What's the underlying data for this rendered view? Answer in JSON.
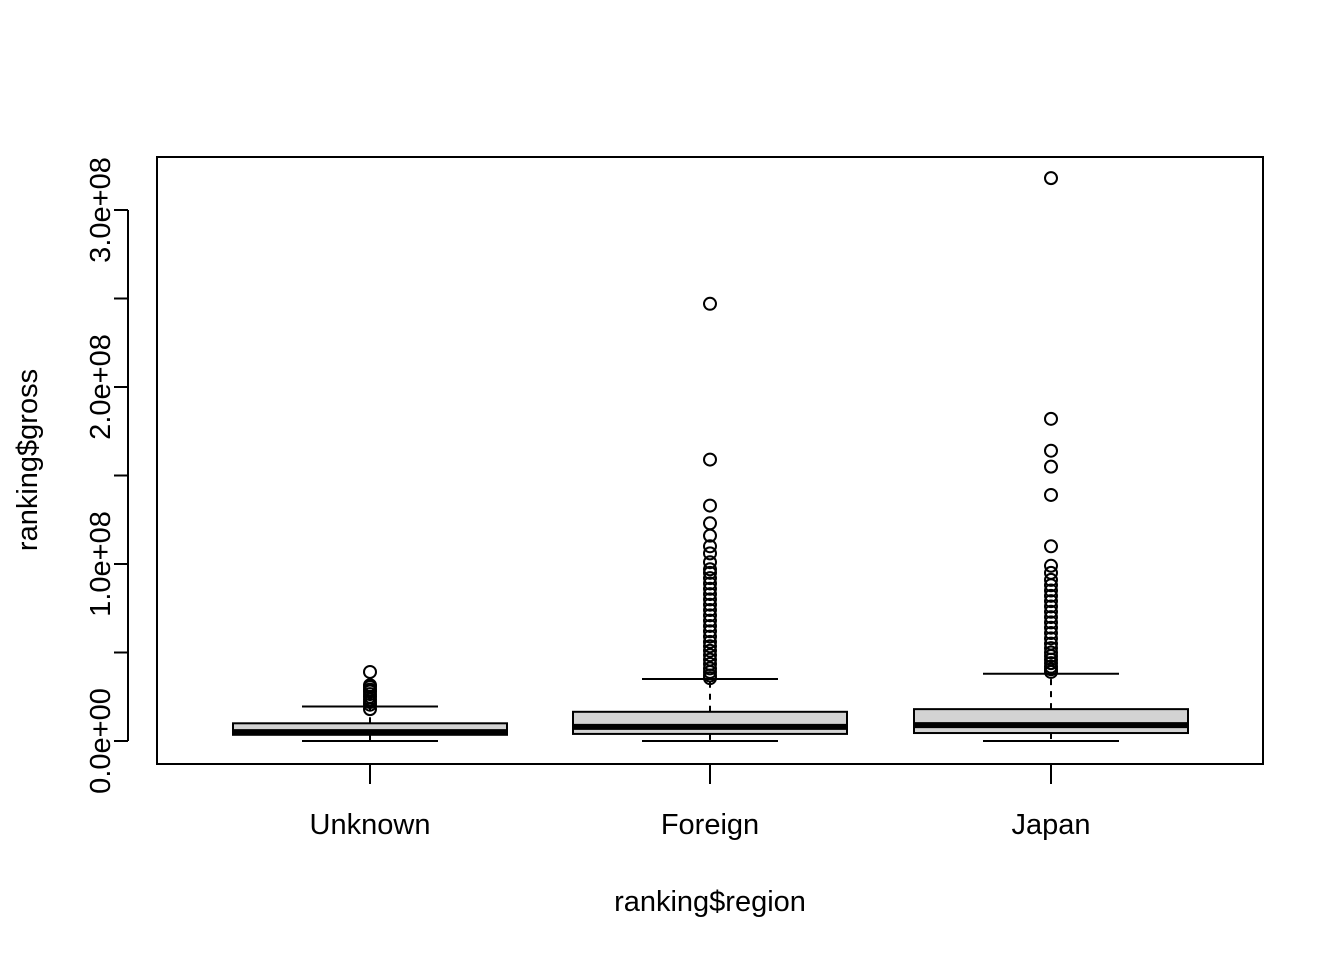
{
  "chart_data": {
    "type": "boxplot",
    "title": "",
    "xlabel": "ranking$region",
    "ylabel": "ranking$gross",
    "ylim": [
      -12000000,
      330000000
    ],
    "y_ticks": [
      0,
      100000000,
      200000000,
      300000000
    ],
    "y_minor_ticks": [
      50000000,
      150000000,
      250000000
    ],
    "y_tick_labels": [
      "0.0e+00",
      "1.0e+08",
      "2.0e+08",
      "3.0e+08"
    ],
    "categories": [
      "Unknown",
      "Foreign",
      "Japan"
    ],
    "grid": false,
    "box_fill": "#d3d3d3",
    "series": [
      {
        "category": "Unknown",
        "whisker_low": 0,
        "q1": 3500000,
        "median": 5000000,
        "q3": 10000000,
        "whisker_high": 19500000,
        "outliers": [
          18000000,
          20500000,
          22000000,
          23500000,
          25000000,
          26500000,
          28000000,
          29000000,
          30500000,
          31500000,
          39000000
        ]
      },
      {
        "category": "Foreign",
        "whisker_low": 0,
        "q1": 4000000,
        "median": 8000000,
        "q3": 16500000,
        "whisker_high": 35000000,
        "outliers": [
          35500000,
          37000000,
          39000000,
          41000000,
          43500000,
          46000000,
          48500000,
          51000000,
          53500000,
          56000000,
          59000000,
          62000000,
          65000000,
          68000000,
          71000000,
          74000000,
          77000000,
          80000000,
          83000000,
          86000000,
          89000000,
          92000000,
          95000000,
          97000000,
          101000000,
          106000000,
          110000000,
          116000000,
          123000000,
          133000000,
          159000000,
          247000000
        ]
      },
      {
        "category": "Japan",
        "whisker_low": 0,
        "q1": 4500000,
        "median": 9000000,
        "q3": 18000000,
        "whisker_high": 38000000,
        "outliers": [
          39000000,
          40500000,
          42000000,
          44000000,
          46000000,
          48000000,
          50000000,
          52500000,
          55000000,
          58000000,
          61000000,
          64000000,
          67000000,
          70000000,
          73000000,
          76000000,
          79000000,
          82000000,
          85000000,
          88000000,
          91000000,
          95000000,
          99000000,
          110000000,
          139000000,
          155000000,
          164000000,
          182000000,
          318000000
        ]
      }
    ]
  }
}
